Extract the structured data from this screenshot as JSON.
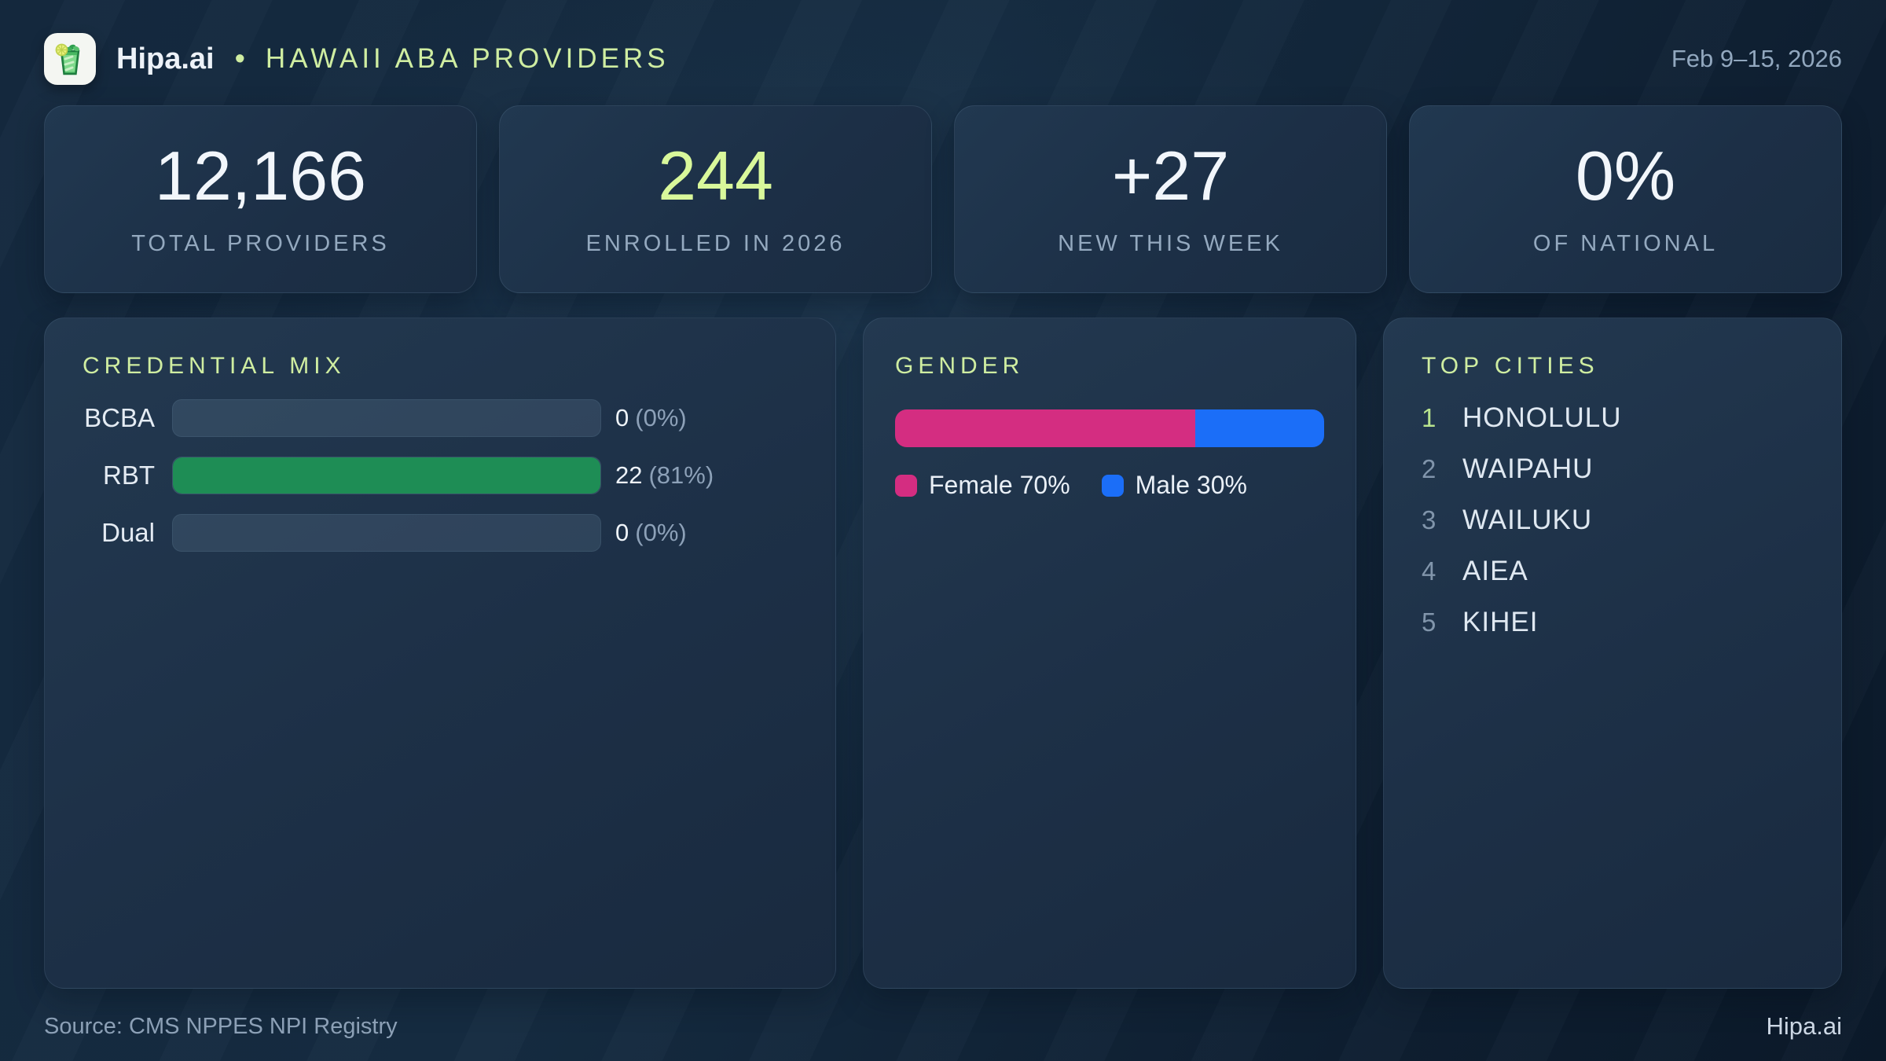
{
  "header": {
    "brand": "Hipa.ai",
    "separator": "•",
    "title": "HAWAII ABA PROVIDERS",
    "date_range": "Feb 9–15, 2026",
    "logo_icon": "mojito-glass-icon"
  },
  "stats": [
    {
      "value": "12,166",
      "label": "TOTAL PROVIDERS"
    },
    {
      "value": "244",
      "label": "ENROLLED IN 2026"
    },
    {
      "value": "+27",
      "label": "NEW THIS WEEK"
    },
    {
      "value": "0%",
      "label": "OF NATIONAL"
    }
  ],
  "credential_mix": {
    "title": "CREDENTIAL MIX",
    "rows": [
      {
        "label": "BCBA",
        "count": "0",
        "pct": "(0%)",
        "fill_pct": 0
      },
      {
        "label": "RBT",
        "count": "22",
        "pct": "(81%)",
        "fill_pct": 100
      },
      {
        "label": "Dual",
        "count": "0",
        "pct": "(0%)",
        "fill_pct": 0
      }
    ],
    "bar_color": "#1e8d55"
  },
  "gender": {
    "title": "GENDER",
    "female": {
      "label": "Female 70%",
      "pct": 70,
      "color": "#d42d81"
    },
    "male": {
      "label": "Male 30%",
      "pct": 30,
      "color": "#1b6ef8"
    }
  },
  "top_cities": {
    "title": "TOP CITIES",
    "items": [
      {
        "rank": "1",
        "name": "HONOLULU"
      },
      {
        "rank": "2",
        "name": "WAIPAHU"
      },
      {
        "rank": "3",
        "name": "WAILUKU"
      },
      {
        "rank": "4",
        "name": "AIEA"
      },
      {
        "rank": "5",
        "name": "KIHEI"
      }
    ]
  },
  "footer": {
    "source": "Source: CMS NPPES NPI Registry",
    "brand": "Hipa.ai"
  },
  "colors": {
    "accent_lime": "#cfeda1",
    "stat_lime": "#d9f89b",
    "bar_green": "#1e8d55",
    "female_pink": "#d42d81",
    "male_blue": "#1b6ef8"
  },
  "chart_data": [
    {
      "type": "table",
      "title": "Stat cards",
      "categories": [
        "TOTAL PROVIDERS",
        "ENROLLED IN 2026",
        "NEW THIS WEEK",
        "OF NATIONAL"
      ],
      "values": [
        12166,
        244,
        27,
        0
      ]
    },
    {
      "type": "bar",
      "title": "CREDENTIAL MIX",
      "orientation": "horizontal",
      "categories": [
        "BCBA",
        "RBT",
        "Dual"
      ],
      "values": [
        0,
        22,
        0
      ],
      "value_labels": [
        "0 (0%)",
        "22 (81%)",
        "0 (0%)"
      ],
      "bar_color": "#1e8d55",
      "xlim": [
        0,
        22
      ]
    },
    {
      "type": "bar",
      "title": "GENDER",
      "stacked": true,
      "categories": [
        "Female",
        "Male"
      ],
      "values": [
        70,
        30
      ],
      "colors": [
        "#d42d81",
        "#1b6ef8"
      ],
      "legend": [
        "Female 70%",
        "Male 30%"
      ],
      "legend_position": "bottom"
    },
    {
      "type": "table",
      "title": "TOP CITIES",
      "categories": [
        "HONOLULU",
        "WAIPAHU",
        "WAILUKU",
        "AIEA",
        "KIHEI"
      ],
      "values": [
        1,
        2,
        3,
        4,
        5
      ]
    }
  ]
}
